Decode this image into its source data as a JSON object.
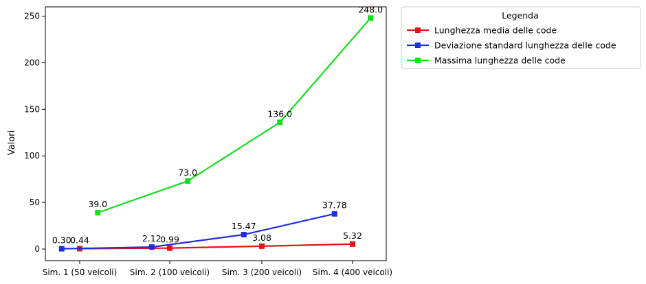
{
  "chart_data": {
    "type": "line",
    "categories": [
      "Sim. 1 (50 veicoli)",
      "Sim. 2 (100 veicoli)",
      "Sim. 3 (200 veicoli)",
      "Sim. 4 (400 veicoli)"
    ],
    "ylabel": "Valori",
    "ylim": [
      -12.5,
      260
    ],
    "yticks": [
      0,
      50,
      100,
      150,
      200,
      250
    ],
    "grid": false,
    "legend": {
      "title": "Legenda",
      "placement": "outside-top-right"
    },
    "series": [
      {
        "name": "Lunghezza media delle code",
        "color": "#e01515",
        "offset": 0.0,
        "values": [
          0.44,
          0.99,
          3.08,
          5.32
        ],
        "labels": [
          "0.44",
          "0.99",
          "3.08",
          "5.32"
        ]
      },
      {
        "name": "Deviazione standard lunghezza delle code",
        "color": "#1f2ee0",
        "offset": -0.2,
        "values": [
          0.3,
          2.12,
          15.47,
          37.78
        ],
        "labels": [
          "0.30",
          "2.12",
          "15.47",
          "37.78"
        ]
      },
      {
        "name": "Massima lunghezza delle code",
        "color": "#12e01b",
        "offset": 0.2,
        "values": [
          39.0,
          73.0,
          136.0,
          248.0
        ],
        "labels": [
          "39.0",
          "73.0",
          "136.0",
          "248.0"
        ]
      }
    ]
  }
}
